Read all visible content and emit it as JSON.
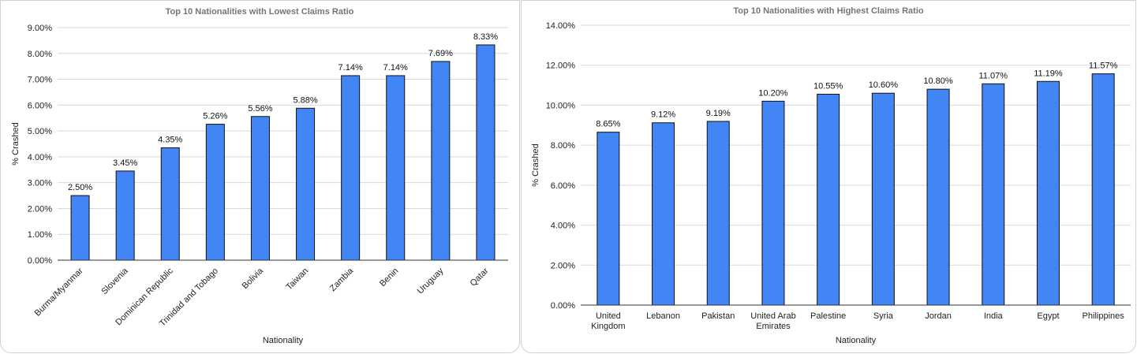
{
  "chart_data": [
    {
      "type": "bar",
      "title": "Top 10 Nationalities with Lowest Claims Ratio",
      "xlabel": "Nationality",
      "ylabel": "% Crashed",
      "categories": [
        "Burma/Myanmar",
        "Slovenia",
        "Dominican Republic",
        "Trinidad and Tobago",
        "Bolivia",
        "Taiwan",
        "Zambia",
        "Benin",
        "Uruguay",
        "Qatar"
      ],
      "values": [
        2.5,
        3.45,
        4.35,
        5.26,
        5.56,
        5.88,
        7.14,
        7.14,
        7.69,
        8.33
      ],
      "data_labels": [
        "2.50%",
        "3.45%",
        "4.35%",
        "5.26%",
        "5.56%",
        "5.88%",
        "7.14%",
        "7.14%",
        "7.69%",
        "8.33%"
      ],
      "ylim": [
        0,
        9
      ],
      "yticks": [
        0,
        1,
        2,
        3,
        4,
        5,
        6,
        7,
        8,
        9
      ],
      "ytick_labels": [
        "0.00%",
        "1.00%",
        "2.00%",
        "3.00%",
        "4.00%",
        "5.00%",
        "6.00%",
        "7.00%",
        "8.00%",
        "9.00%"
      ],
      "grid": true,
      "bar_color": "#4285f4",
      "rotated_xlabels": true
    },
    {
      "type": "bar",
      "title": "Top 10 Nationalities with Highest Claims Ratio",
      "xlabel": "Nationality",
      "ylabel": "% Crashed",
      "categories": [
        "United Kingdom",
        "Lebanon",
        "Pakistan",
        "United Arab Emirates",
        "Palestine",
        "Syria",
        "Jordan",
        "India",
        "Egypt",
        "Philippines"
      ],
      "category_lines": [
        [
          "United",
          "Kingdom"
        ],
        [
          "Lebanon"
        ],
        [
          "Pakistan"
        ],
        [
          "United Arab",
          "Emirates"
        ],
        [
          "Palestine"
        ],
        [
          "Syria"
        ],
        [
          "Jordan"
        ],
        [
          "India"
        ],
        [
          "Egypt"
        ],
        [
          "Philippines"
        ]
      ],
      "values": [
        8.65,
        9.12,
        9.19,
        10.2,
        10.55,
        10.6,
        10.8,
        11.07,
        11.19,
        11.57
      ],
      "data_labels": [
        "8.65%",
        "9.12%",
        "9.19%",
        "10.20%",
        "10.55%",
        "10.60%",
        "10.80%",
        "11.07%",
        "11.19%",
        "11.57%"
      ],
      "ylim": [
        0,
        14
      ],
      "yticks": [
        0,
        2,
        4,
        6,
        8,
        10,
        12,
        14
      ],
      "ytick_labels": [
        "0.00%",
        "2.00%",
        "4.00%",
        "6.00%",
        "8.00%",
        "10.00%",
        "12.00%",
        "14.00%"
      ],
      "grid": true,
      "bar_color": "#4285f4",
      "rotated_xlabels": false
    }
  ]
}
